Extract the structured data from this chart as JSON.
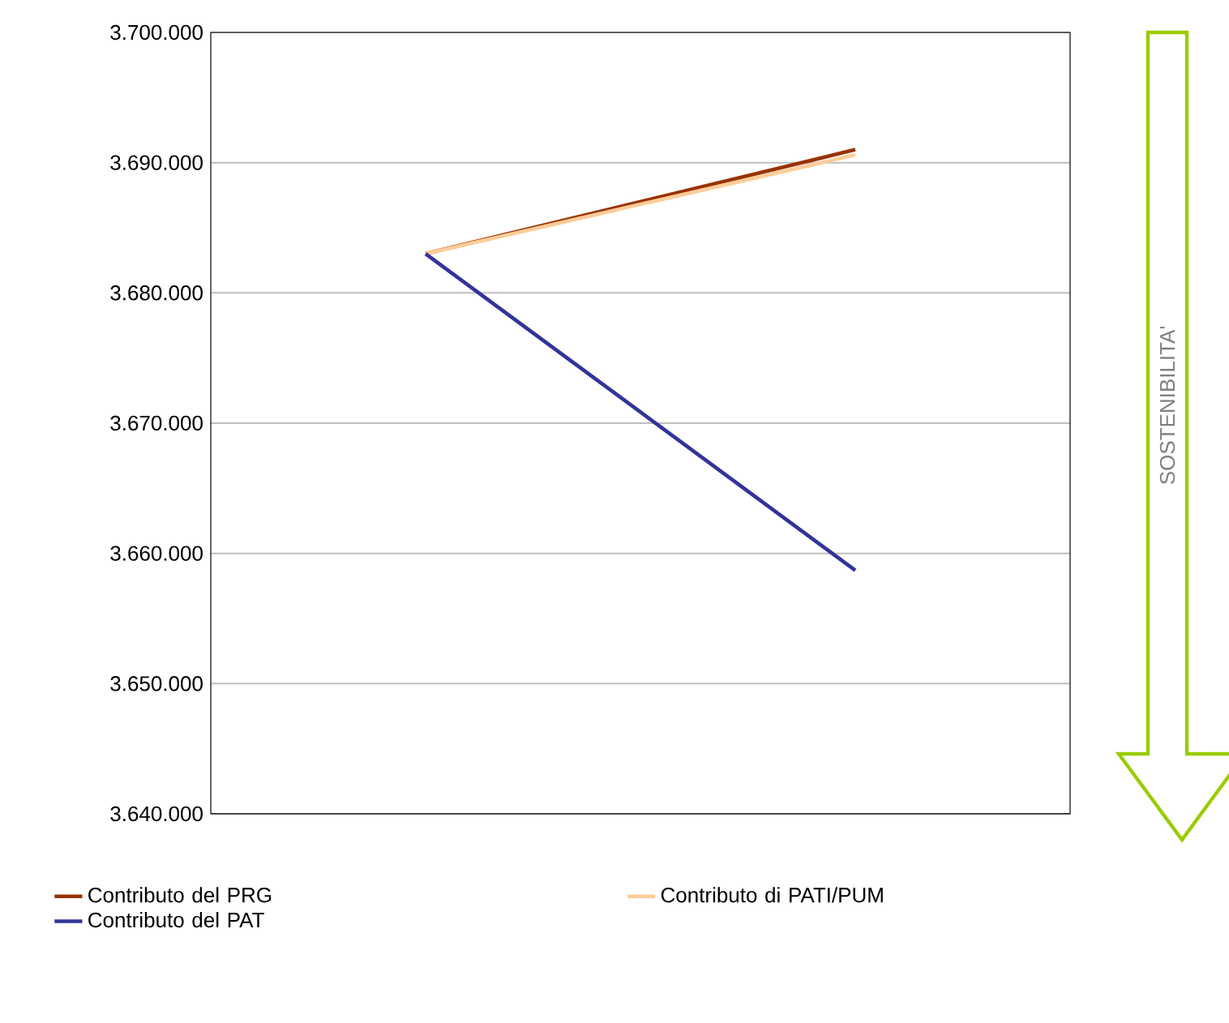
{
  "chart_data": {
    "type": "line",
    "categories": [
      null,
      null
    ],
    "series": [
      {
        "name": "Contributo del PRG",
        "color": "#993300",
        "values": [
          3683000,
          3691000
        ]
      },
      {
        "name": "Contributo di PATI/PUM",
        "color": "#ffcc99",
        "values": [
          3683000,
          3690600
        ]
      },
      {
        "name": "Contributo del PAT",
        "color": "#333399",
        "values": [
          3683000,
          3658700
        ]
      }
    ],
    "ylim": [
      3640000,
      3700000
    ],
    "yticks": [
      {
        "value": 3640000,
        "label": "3.640.000"
      },
      {
        "value": 3650000,
        "label": "3.650.000"
      },
      {
        "value": 3660000,
        "label": "3.660.000"
      },
      {
        "value": 3670000,
        "label": "3.670.000"
      },
      {
        "value": 3680000,
        "label": "3.680.000"
      },
      {
        "value": 3690000,
        "label": "3.690.000"
      },
      {
        "value": 3700000,
        "label": "3.700.000"
      }
    ],
    "grid": "y",
    "legend": "bottom",
    "marker": "none",
    "line_style": "solid",
    "annotations": [
      "SOSTENIBILITA'"
    ]
  }
}
